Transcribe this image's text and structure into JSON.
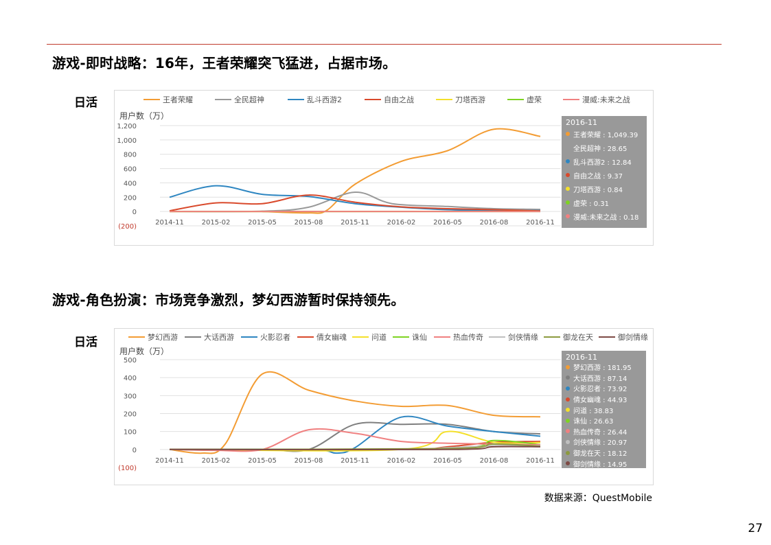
{
  "colors": {
    "rule": "#c0392b",
    "tooltip_bg": "#999999"
  },
  "section1": {
    "title": "游戏-即时战略：16年，王者荣耀突飞猛进，占据市场。",
    "dau_label": "日活"
  },
  "section2": {
    "title": "游戏-角色扮演：市场竞争激烈，梦幻西游暂时保持领先。",
    "dau_label": "日活"
  },
  "source": "数据来源：QuestMobile",
  "page_number": "27",
  "chart_data": [
    {
      "type": "line",
      "ylabel": "用户数（万）",
      "ylim": [
        -200,
        1200
      ],
      "yticks": [
        1200,
        1000,
        800,
        600,
        400,
        200,
        0,
        -200
      ],
      "ytick_labels": [
        "1,200",
        "1,000",
        "800",
        "600",
        "400",
        "200",
        "0",
        "(200)"
      ],
      "x_ticks": [
        "2014-11",
        "2015-02",
        "2015-05",
        "2015-08",
        "2015-11",
        "2016-02",
        "2016-05",
        "2016-08",
        "2016-11"
      ],
      "grid": true,
      "legend_position": "top",
      "tooltip": {
        "date": "2016-11",
        "items": [
          {
            "label": "王者荣耀 : 1,049.39",
            "color": "#f39c33"
          },
          {
            "label": "全民超神 : 28.65",
            "color": "#999999"
          },
          {
            "label": "乱斗西游2 : 12.84",
            "color": "#2e86c1"
          },
          {
            "label": "自由之战 : 9.37",
            "color": "#d9492b"
          },
          {
            "label": "刀塔西游 : 0.84",
            "color": "#f4e02a"
          },
          {
            "label": "虚荣 : 0.31",
            "color": "#7ed321"
          },
          {
            "label": "漫威:未来之战 : 0.18",
            "color": "#f08080"
          }
        ]
      },
      "series": [
        {
          "name": "王者荣耀",
          "color": "#f39c33",
          "points": [
            [
              2,
              0
            ],
            [
              3,
              -20
            ],
            [
              3.4,
              20
            ],
            [
              4,
              380
            ],
            [
              5,
              700
            ],
            [
              6,
              850
            ],
            [
              7,
              1150
            ],
            [
              8,
              1049
            ]
          ]
        },
        {
          "name": "全民超神",
          "color": "#999999",
          "points": [
            [
              0,
              0
            ],
            [
              2,
              5
            ],
            [
              3,
              60
            ],
            [
              4,
              270
            ],
            [
              4.8,
              110
            ],
            [
              6,
              70
            ],
            [
              7,
              40
            ],
            [
              8,
              29
            ]
          ]
        },
        {
          "name": "乱斗西游2",
          "color": "#2e86c1",
          "points": [
            [
              0,
              200
            ],
            [
              1,
              360
            ],
            [
              2,
              240
            ],
            [
              3,
              210
            ],
            [
              4,
              110
            ],
            [
              5,
              60
            ],
            [
              6,
              25
            ],
            [
              7,
              15
            ],
            [
              8,
              13
            ]
          ]
        },
        {
          "name": "自由之战",
          "color": "#d9492b",
          "points": [
            [
              0,
              10
            ],
            [
              1,
              120
            ],
            [
              2,
              110
            ],
            [
              3,
              230
            ],
            [
              4,
              130
            ],
            [
              5,
              65
            ],
            [
              6,
              40
            ],
            [
              7,
              25
            ],
            [
              8,
              9
            ]
          ]
        },
        {
          "name": "刀塔西游",
          "color": "#f4e02a",
          "points": [
            [
              0,
              0
            ],
            [
              8,
              1
            ]
          ]
        },
        {
          "name": "虚荣",
          "color": "#7ed321",
          "points": [
            [
              0,
              0
            ],
            [
              8,
              0.3
            ]
          ]
        },
        {
          "name": "漫威:未来之战",
          "color": "#f08080",
          "points": [
            [
              0,
              0
            ],
            [
              8,
              0.2
            ]
          ]
        }
      ]
    },
    {
      "type": "line",
      "ylabel": "用户数（万）",
      "ylim": [
        -100,
        500
      ],
      "yticks": [
        500,
        400,
        300,
        200,
        100,
        0,
        -100
      ],
      "ytick_labels": [
        "500",
        "400",
        "300",
        "200",
        "100",
        "0",
        "(100)"
      ],
      "x_ticks": [
        "2014-11",
        "2015-02",
        "2015-05",
        "2015-08",
        "2015-11",
        "2016-02",
        "2016-05",
        "2016-08",
        "2016-11"
      ],
      "grid": true,
      "legend_position": "top",
      "tooltip": {
        "date": "2016-11",
        "items": [
          {
            "label": "梦幻西游 : 181.95",
            "color": "#f39c33"
          },
          {
            "label": "大话西游 : 87.14",
            "color": "#7f7f7f"
          },
          {
            "label": "火影忍者 : 73.92",
            "color": "#2e86c1"
          },
          {
            "label": "倩女幽魂 : 44.93",
            "color": "#d9492b"
          },
          {
            "label": "问道 : 38.83",
            "color": "#f4e02a"
          },
          {
            "label": "诛仙 : 26.63",
            "color": "#7ed321"
          },
          {
            "label": "热血传奇 : 26.44",
            "color": "#f08080"
          },
          {
            "label": "剑侠情缘 : 20.97",
            "color": "#bfbfbf"
          },
          {
            "label": "御龙在天 : 18.12",
            "color": "#8c9a3f"
          },
          {
            "label": "御剑情缘 : 14.95",
            "color": "#7d4a45"
          }
        ]
      },
      "series": [
        {
          "name": "梦幻西游",
          "color": "#f39c33",
          "points": [
            [
              0,
              0
            ],
            [
              0.7,
              -20
            ],
            [
              1.2,
              30
            ],
            [
              2,
              420
            ],
            [
              3,
              330
            ],
            [
              4,
              270
            ],
            [
              5,
              240
            ],
            [
              6,
              245
            ],
            [
              7,
              190
            ],
            [
              8,
              182
            ]
          ]
        },
        {
          "name": "大话西游",
          "color": "#7f7f7f",
          "points": [
            [
              0,
              0
            ],
            [
              2,
              0
            ],
            [
              3,
              0
            ],
            [
              4,
              140
            ],
            [
              5,
              140
            ],
            [
              6,
              140
            ],
            [
              7,
              100
            ],
            [
              8,
              87
            ]
          ]
        },
        {
          "name": "火影忍者",
          "color": "#2e86c1",
          "points": [
            [
              0,
              0
            ],
            [
              3,
              0
            ],
            [
              3.6,
              -20
            ],
            [
              4,
              10
            ],
            [
              5,
              180
            ],
            [
              6,
              130
            ],
            [
              7,
              100
            ],
            [
              8,
              74
            ]
          ]
        },
        {
          "name": "倩女幽魂",
          "color": "#d9492b",
          "points": [
            [
              0,
              0
            ],
            [
              5,
              0
            ],
            [
              6,
              15
            ],
            [
              7,
              40
            ],
            [
              8,
              45
            ]
          ]
        },
        {
          "name": "问道",
          "color": "#f4e02a",
          "points": [
            [
              0,
              0
            ],
            [
              5,
              0
            ],
            [
              6,
              100
            ],
            [
              7,
              40
            ],
            [
              8,
              39
            ]
          ]
        },
        {
          "name": "诛仙",
          "color": "#7ed321",
          "points": [
            [
              0,
              0
            ],
            [
              6,
              5
            ],
            [
              7,
              50
            ],
            [
              8,
              27
            ]
          ]
        },
        {
          "name": "热血传奇",
          "color": "#f08080",
          "points": [
            [
              0,
              0
            ],
            [
              1,
              -5
            ],
            [
              2,
              0
            ],
            [
              3,
              110
            ],
            [
              4,
              90
            ],
            [
              5,
              45
            ],
            [
              6,
              35
            ],
            [
              7,
              30
            ],
            [
              8,
              26
            ]
          ]
        },
        {
          "name": "剑侠情缘",
          "color": "#bfbfbf",
          "points": [
            [
              0,
              0
            ],
            [
              5,
              0
            ],
            [
              6,
              10
            ],
            [
              7,
              20
            ],
            [
              8,
              21
            ]
          ]
        },
        {
          "name": "御龙在天",
          "color": "#8c9a3f",
          "points": [
            [
              0,
              0
            ],
            [
              6,
              5
            ],
            [
              7,
              30
            ],
            [
              8,
              18
            ]
          ]
        },
        {
          "name": "御剑情缘",
          "color": "#7d4a45",
          "points": [
            [
              0,
              0
            ],
            [
              6,
              0
            ],
            [
              7,
              15
            ],
            [
              8,
              15
            ]
          ]
        }
      ]
    }
  ]
}
